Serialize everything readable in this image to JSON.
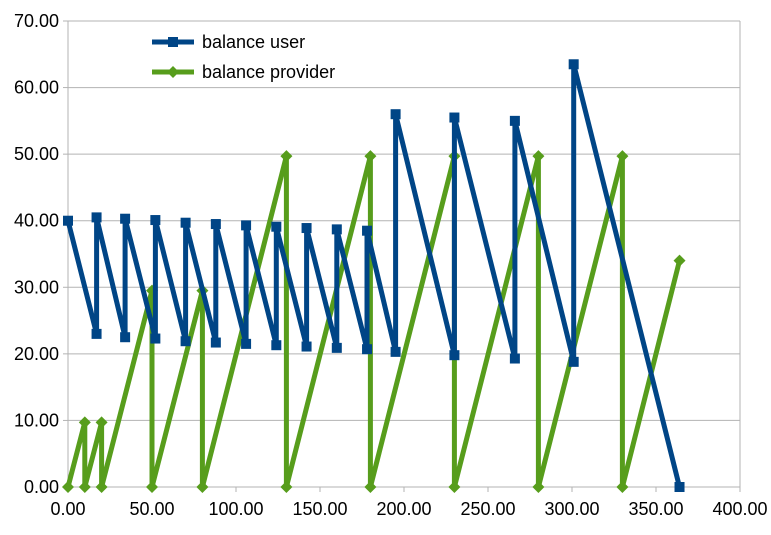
{
  "chart_data": {
    "type": "line",
    "title": "",
    "xlabel": "",
    "ylabel": "",
    "xlim": [
      0,
      400
    ],
    "ylim": [
      0,
      70
    ],
    "x_ticks": [
      "0.00",
      "50.00",
      "100.00",
      "150.00",
      "200.00",
      "250.00",
      "300.00",
      "350.00",
      "400.00"
    ],
    "y_ticks": [
      "0.00",
      "10.00",
      "20.00",
      "30.00",
      "40.00",
      "50.00",
      "60.00",
      "70.00"
    ],
    "grid": "horizontal",
    "legend_position": "top-left",
    "series": [
      {
        "name": "balance user",
        "color": "#004586",
        "marker": "square",
        "points": [
          [
            0,
            40
          ],
          [
            17,
            23
          ],
          [
            17,
            40.5
          ],
          [
            34,
            22.5
          ],
          [
            34,
            40.3
          ],
          [
            52,
            22.3
          ],
          [
            52,
            40.1
          ],
          [
            70,
            21.9
          ],
          [
            70,
            39.7
          ],
          [
            88,
            21.7
          ],
          [
            88,
            39.5
          ],
          [
            106,
            21.5
          ],
          [
            106,
            39.3
          ],
          [
            124,
            21.3
          ],
          [
            124,
            39.1
          ],
          [
            142,
            21.1
          ],
          [
            142,
            38.9
          ],
          [
            160,
            20.9
          ],
          [
            160,
            38.7
          ],
          [
            178,
            20.7
          ],
          [
            178,
            38.5
          ],
          [
            195,
            20.3
          ],
          [
            195,
            56
          ],
          [
            230,
            19.8
          ],
          [
            230,
            55.5
          ],
          [
            266,
            19.3
          ],
          [
            266,
            55
          ],
          [
            301,
            18.8
          ],
          [
            301,
            63.5
          ],
          [
            364,
            0
          ]
        ]
      },
      {
        "name": "balance provider",
        "color": "#579d1c",
        "marker": "diamond",
        "points": [
          [
            0,
            0
          ],
          [
            10,
            9.7
          ],
          [
            10,
            0
          ],
          [
            20,
            9.7
          ],
          [
            20,
            0
          ],
          [
            50,
            29.5
          ],
          [
            50,
            0
          ],
          [
            80,
            29.5
          ],
          [
            80,
            0
          ],
          [
            130,
            49.7
          ],
          [
            130,
            0
          ],
          [
            180,
            49.7
          ],
          [
            180,
            0
          ],
          [
            230,
            49.7
          ],
          [
            230,
            0
          ],
          [
            280,
            49.7
          ],
          [
            280,
            0
          ],
          [
            330,
            49.7
          ],
          [
            330,
            0
          ],
          [
            364,
            34
          ]
        ]
      }
    ]
  }
}
